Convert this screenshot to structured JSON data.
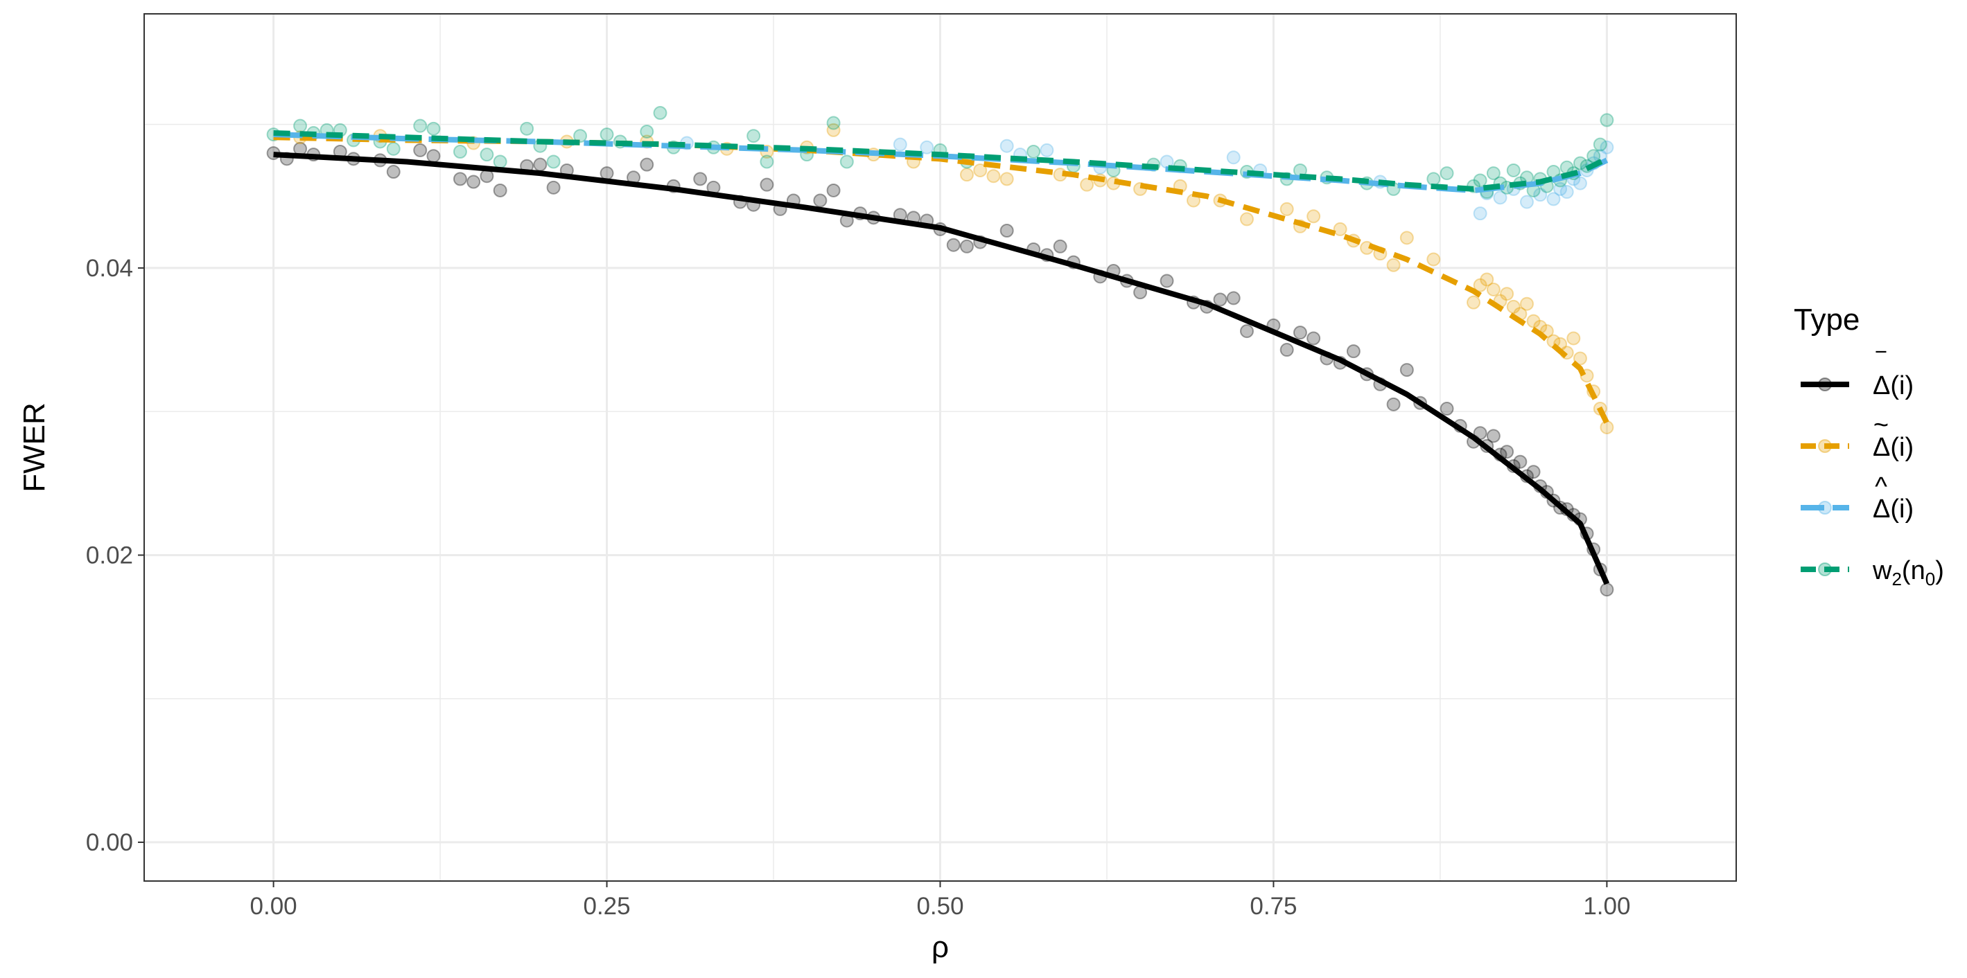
{
  "chart_data": {
    "type": "line",
    "xlabel": "ρ",
    "ylabel": "FWER",
    "xlim": [
      -0.097,
      1.097
    ],
    "ylim": [
      -0.0027,
      0.0577
    ],
    "x_ticks": [
      0,
      0.25,
      0.5,
      0.75,
      1
    ],
    "x_tick_labels": [
      "0.00",
      "0.25",
      "0.50",
      "0.75",
      "1.00"
    ],
    "y_ticks": [
      0,
      0.02,
      0.04
    ],
    "y_tick_labels": [
      "0.00",
      "0.02",
      "0.04"
    ],
    "grid": true,
    "legend": {
      "title": "Type",
      "position": "right"
    },
    "series": [
      {
        "name": "Δ̅(i)",
        "name_base": "Δ",
        "name_accent": "‾",
        "name_suffix": "(i)",
        "color": "#000000",
        "dash": "solid",
        "point_opacity": 0.25,
        "x": [
          0,
          0.1,
          0.2,
          0.3,
          0.4,
          0.5,
          0.6,
          0.7,
          0.8,
          0.85,
          0.9,
          0.95,
          0.98,
          1.0
        ],
        "y": [
          0.0479,
          0.0474,
          0.0466,
          0.0455,
          0.0442,
          0.0428,
          0.0402,
          0.0375,
          0.0336,
          0.0312,
          0.0282,
          0.0246,
          0.0222,
          0.018
        ],
        "points": [
          [
            0,
            0.048
          ],
          [
            0.01,
            0.0476
          ],
          [
            0.02,
            0.0483
          ],
          [
            0.03,
            0.0479
          ],
          [
            0.05,
            0.0481
          ],
          [
            0.06,
            0.0476
          ],
          [
            0.08,
            0.0475
          ],
          [
            0.09,
            0.0467
          ],
          [
            0.11,
            0.0482
          ],
          [
            0.12,
            0.0478
          ],
          [
            0.14,
            0.0462
          ],
          [
            0.15,
            0.046
          ],
          [
            0.16,
            0.0464
          ],
          [
            0.17,
            0.0454
          ],
          [
            0.19,
            0.0471
          ],
          [
            0.2,
            0.0472
          ],
          [
            0.21,
            0.0456
          ],
          [
            0.22,
            0.0468
          ],
          [
            0.25,
            0.0466
          ],
          [
            0.27,
            0.0463
          ],
          [
            0.28,
            0.0472
          ],
          [
            0.3,
            0.0457
          ],
          [
            0.32,
            0.0462
          ],
          [
            0.33,
            0.0456
          ],
          [
            0.35,
            0.0446
          ],
          [
            0.36,
            0.0444
          ],
          [
            0.37,
            0.0458
          ],
          [
            0.38,
            0.0441
          ],
          [
            0.39,
            0.0447
          ],
          [
            0.41,
            0.0447
          ],
          [
            0.42,
            0.0454
          ],
          [
            0.43,
            0.0433
          ],
          [
            0.44,
            0.0438
          ],
          [
            0.45,
            0.0435
          ],
          [
            0.47,
            0.0437
          ],
          [
            0.48,
            0.0435
          ],
          [
            0.49,
            0.0433
          ],
          [
            0.5,
            0.0427
          ],
          [
            0.51,
            0.0416
          ],
          [
            0.52,
            0.0415
          ],
          [
            0.53,
            0.0418
          ],
          [
            0.55,
            0.0426
          ],
          [
            0.57,
            0.0413
          ],
          [
            0.58,
            0.0409
          ],
          [
            0.59,
            0.0415
          ],
          [
            0.6,
            0.0404
          ],
          [
            0.62,
            0.0394
          ],
          [
            0.63,
            0.0398
          ],
          [
            0.64,
            0.0391
          ],
          [
            0.65,
            0.0383
          ],
          [
            0.67,
            0.0391
          ],
          [
            0.69,
            0.0376
          ],
          [
            0.7,
            0.0373
          ],
          [
            0.71,
            0.0378
          ],
          [
            0.72,
            0.0379
          ],
          [
            0.73,
            0.0356
          ],
          [
            0.75,
            0.036
          ],
          [
            0.76,
            0.0343
          ],
          [
            0.77,
            0.0355
          ],
          [
            0.78,
            0.0351
          ],
          [
            0.79,
            0.0337
          ],
          [
            0.8,
            0.0334
          ],
          [
            0.81,
            0.0342
          ],
          [
            0.82,
            0.0326
          ],
          [
            0.83,
            0.0319
          ],
          [
            0.84,
            0.0305
          ],
          [
            0.85,
            0.0329
          ],
          [
            0.86,
            0.0306
          ],
          [
            0.88,
            0.0302
          ],
          [
            0.89,
            0.029
          ],
          [
            0.9,
            0.0279
          ],
          [
            0.905,
            0.0285
          ],
          [
            0.91,
            0.0276
          ],
          [
            0.915,
            0.0283
          ],
          [
            0.92,
            0.027
          ],
          [
            0.925,
            0.0272
          ],
          [
            0.93,
            0.0262
          ],
          [
            0.935,
            0.0265
          ],
          [
            0.94,
            0.0255
          ],
          [
            0.945,
            0.0258
          ],
          [
            0.95,
            0.0248
          ],
          [
            0.955,
            0.0244
          ],
          [
            0.96,
            0.0238
          ],
          [
            0.965,
            0.0233
          ],
          [
            0.97,
            0.0232
          ],
          [
            0.975,
            0.0228
          ],
          [
            0.98,
            0.0225
          ],
          [
            0.985,
            0.0215
          ],
          [
            0.99,
            0.0204
          ],
          [
            0.995,
            0.019
          ],
          [
            1.0,
            0.0176
          ]
        ]
      },
      {
        "name": "Δ̃(i)",
        "name_base": "Δ",
        "name_accent": "~",
        "name_suffix": "(i)",
        "color": "#E69F00",
        "dash": "dashed",
        "point_opacity": 0.25,
        "x": [
          0,
          0.1,
          0.2,
          0.3,
          0.4,
          0.5,
          0.6,
          0.7,
          0.8,
          0.85,
          0.9,
          0.95,
          0.98,
          1.0
        ],
        "y": [
          0.0491,
          0.0489,
          0.0488,
          0.0486,
          0.0482,
          0.0476,
          0.0465,
          0.045,
          0.0423,
          0.0406,
          0.0384,
          0.0354,
          0.033,
          0.0292
        ],
        "points": [
          [
            0.02,
            0.0491
          ],
          [
            0.08,
            0.0492
          ],
          [
            0.15,
            0.0487
          ],
          [
            0.22,
            0.0488
          ],
          [
            0.28,
            0.0488
          ],
          [
            0.34,
            0.0483
          ],
          [
            0.37,
            0.0481
          ],
          [
            0.4,
            0.0484
          ],
          [
            0.42,
            0.0496
          ],
          [
            0.45,
            0.0479
          ],
          [
            0.48,
            0.0474
          ],
          [
            0.52,
            0.0465
          ],
          [
            0.53,
            0.0468
          ],
          [
            0.54,
            0.0464
          ],
          [
            0.55,
            0.0462
          ],
          [
            0.59,
            0.0465
          ],
          [
            0.61,
            0.0458
          ],
          [
            0.62,
            0.0461
          ],
          [
            0.63,
            0.0459
          ],
          [
            0.65,
            0.0455
          ],
          [
            0.68,
            0.0457
          ],
          [
            0.69,
            0.0447
          ],
          [
            0.71,
            0.0447
          ],
          [
            0.73,
            0.0434
          ],
          [
            0.76,
            0.0441
          ],
          [
            0.77,
            0.0429
          ],
          [
            0.78,
            0.0436
          ],
          [
            0.8,
            0.0427
          ],
          [
            0.81,
            0.0419
          ],
          [
            0.82,
            0.0414
          ],
          [
            0.83,
            0.041
          ],
          [
            0.84,
            0.0402
          ],
          [
            0.85,
            0.0421
          ],
          [
            0.87,
            0.0406
          ],
          [
            0.9,
            0.0376
          ],
          [
            0.905,
            0.0388
          ],
          [
            0.91,
            0.0392
          ],
          [
            0.915,
            0.0385
          ],
          [
            0.92,
            0.0377
          ],
          [
            0.925,
            0.0382
          ],
          [
            0.93,
            0.0373
          ],
          [
            0.935,
            0.0368
          ],
          [
            0.94,
            0.0375
          ],
          [
            0.945,
            0.0363
          ],
          [
            0.95,
            0.0359
          ],
          [
            0.955,
            0.0356
          ],
          [
            0.96,
            0.0349
          ],
          [
            0.965,
            0.0347
          ],
          [
            0.97,
            0.0341
          ],
          [
            0.975,
            0.0351
          ],
          [
            0.98,
            0.0337
          ],
          [
            0.985,
            0.0325
          ],
          [
            0.99,
            0.0314
          ],
          [
            0.995,
            0.0302
          ],
          [
            1.0,
            0.0289
          ]
        ]
      },
      {
        "name": "Δ̂(i)",
        "name_base": "Δ",
        "name_accent": "^",
        "name_suffix": "(i)",
        "color": "#56B4E9",
        "dash": "longdash",
        "point_opacity": 0.25,
        "x": [
          0,
          0.1,
          0.2,
          0.3,
          0.4,
          0.5,
          0.6,
          0.7,
          0.8,
          0.85,
          0.9,
          0.95,
          0.98,
          1.0
        ],
        "y": [
          0.0493,
          0.049,
          0.0488,
          0.0485,
          0.0482,
          0.0478,
          0.0473,
          0.0467,
          0.0461,
          0.0457,
          0.0454,
          0.0459,
          0.0466,
          0.0475
        ],
        "points": [
          [
            0.31,
            0.0487
          ],
          [
            0.47,
            0.0486
          ],
          [
            0.49,
            0.0484
          ],
          [
            0.55,
            0.0485
          ],
          [
            0.56,
            0.0479
          ],
          [
            0.58,
            0.0482
          ],
          [
            0.62,
            0.047
          ],
          [
            0.67,
            0.0474
          ],
          [
            0.72,
            0.0477
          ],
          [
            0.74,
            0.0468
          ],
          [
            0.83,
            0.046
          ],
          [
            0.905,
            0.0438
          ],
          [
            0.91,
            0.0452
          ],
          [
            0.92,
            0.0449
          ],
          [
            0.93,
            0.0455
          ],
          [
            0.94,
            0.0446
          ],
          [
            0.95,
            0.0451
          ],
          [
            0.96,
            0.0448
          ],
          [
            0.965,
            0.0455
          ],
          [
            0.97,
            0.0453
          ],
          [
            0.975,
            0.0462
          ],
          [
            0.98,
            0.0459
          ],
          [
            0.985,
            0.0468
          ],
          [
            0.99,
            0.0473
          ],
          [
            0.995,
            0.0478
          ],
          [
            1.0,
            0.0484
          ]
        ]
      },
      {
        "name": "w₂(n₀)",
        "name_base": "w",
        "name_sub1": "2",
        "name_mid": "(n",
        "name_sub2": "0",
        "name_end": ")",
        "color": "#009E73",
        "dash": "dashed",
        "point_opacity": 0.25,
        "x": [
          0,
          0.1,
          0.2,
          0.3,
          0.4,
          0.5,
          0.6,
          0.7,
          0.8,
          0.85,
          0.9,
          0.95,
          0.98,
          1.0
        ],
        "y": [
          0.0494,
          0.0491,
          0.0488,
          0.0486,
          0.0483,
          0.0479,
          0.0474,
          0.0468,
          0.0462,
          0.0458,
          0.0455,
          0.046,
          0.0467,
          0.0476
        ],
        "points": [
          [
            0,
            0.0493
          ],
          [
            0.02,
            0.0499
          ],
          [
            0.03,
            0.0494
          ],
          [
            0.04,
            0.0496
          ],
          [
            0.05,
            0.0496
          ],
          [
            0.06,
            0.0489
          ],
          [
            0.08,
            0.0488
          ],
          [
            0.09,
            0.0483
          ],
          [
            0.11,
            0.0499
          ],
          [
            0.12,
            0.0497
          ],
          [
            0.14,
            0.0481
          ],
          [
            0.16,
            0.0479
          ],
          [
            0.17,
            0.0474
          ],
          [
            0.19,
            0.0497
          ],
          [
            0.2,
            0.0485
          ],
          [
            0.21,
            0.0474
          ],
          [
            0.23,
            0.0492
          ],
          [
            0.25,
            0.0493
          ],
          [
            0.26,
            0.0488
          ],
          [
            0.28,
            0.0495
          ],
          [
            0.29,
            0.0508
          ],
          [
            0.3,
            0.0484
          ],
          [
            0.33,
            0.0484
          ],
          [
            0.36,
            0.0492
          ],
          [
            0.37,
            0.0474
          ],
          [
            0.4,
            0.0479
          ],
          [
            0.42,
            0.0501
          ],
          [
            0.43,
            0.0474
          ],
          [
            0.5,
            0.0482
          ],
          [
            0.52,
            0.0474
          ],
          [
            0.57,
            0.0481
          ],
          [
            0.6,
            0.0471
          ],
          [
            0.63,
            0.0468
          ],
          [
            0.66,
            0.0472
          ],
          [
            0.68,
            0.0471
          ],
          [
            0.73,
            0.0467
          ],
          [
            0.76,
            0.0462
          ],
          [
            0.77,
            0.0468
          ],
          [
            0.79,
            0.0463
          ],
          [
            0.82,
            0.0459
          ],
          [
            0.84,
            0.0455
          ],
          [
            0.87,
            0.0462
          ],
          [
            0.88,
            0.0466
          ],
          [
            0.9,
            0.0457
          ],
          [
            0.905,
            0.0461
          ],
          [
            0.91,
            0.0453
          ],
          [
            0.915,
            0.0466
          ],
          [
            0.92,
            0.0459
          ],
          [
            0.925,
            0.0456
          ],
          [
            0.93,
            0.0468
          ],
          [
            0.935,
            0.0459
          ],
          [
            0.94,
            0.0463
          ],
          [
            0.945,
            0.0454
          ],
          [
            0.95,
            0.0462
          ],
          [
            0.955,
            0.0457
          ],
          [
            0.96,
            0.0467
          ],
          [
            0.965,
            0.0461
          ],
          [
            0.97,
            0.047
          ],
          [
            0.975,
            0.0466
          ],
          [
            0.98,
            0.0473
          ],
          [
            0.985,
            0.0471
          ],
          [
            0.99,
            0.0478
          ],
          [
            0.995,
            0.0486
          ],
          [
            1.0,
            0.0503
          ]
        ]
      }
    ]
  }
}
